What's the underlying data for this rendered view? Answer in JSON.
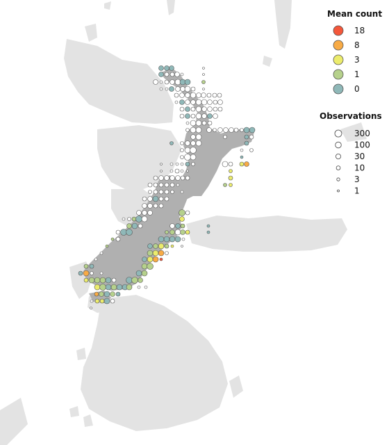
{
  "legend": {
    "mean_count_title": "Mean count",
    "mean_count_items": [
      {
        "label": "18",
        "color": "#f4573a"
      },
      {
        "label": "8",
        "color": "#f8ab45"
      },
      {
        "label": "3",
        "color": "#ecec6c"
      },
      {
        "label": "1",
        "color": "#b6d18c"
      },
      {
        "label": "0",
        "color": "#8fb8b8"
      }
    ],
    "observations_title": "Observations",
    "observation_items": [
      {
        "label": "300",
        "value": 300
      },
      {
        "label": "100",
        "value": 100
      },
      {
        "label": "30",
        "value": 30
      },
      {
        "label": "10",
        "value": 10
      },
      {
        "label": "3",
        "value": 3
      },
      {
        "label": "1",
        "value": 1
      }
    ]
  },
  "colors": {
    "background_land": "#e3e3e3",
    "nz_land": "#b0b0b0",
    "empty_fill": "#ffffff",
    "point_stroke": "#555555"
  }
}
